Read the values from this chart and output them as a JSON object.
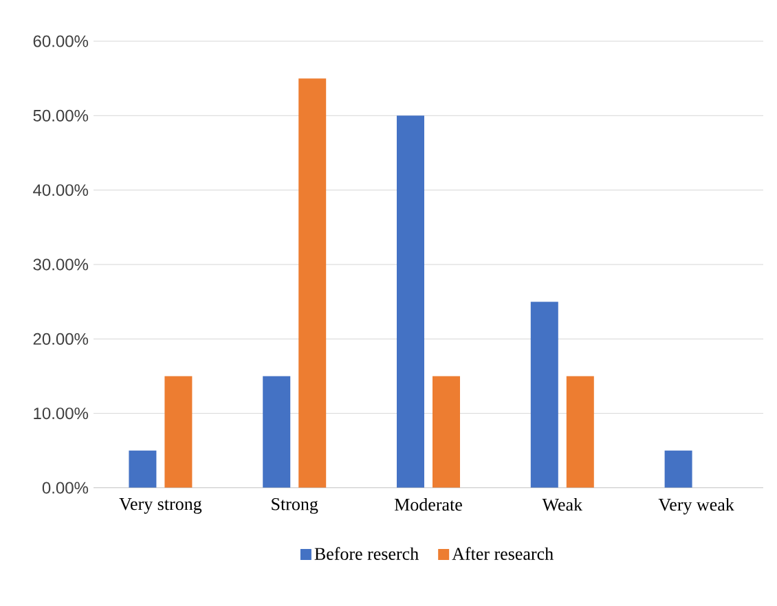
{
  "chart_data": {
    "type": "bar",
    "categories": [
      "Very strong",
      "Strong",
      "Moderate",
      "Weak",
      "Very weak"
    ],
    "series": [
      {
        "name": "Before reserch",
        "color": "#4472c4",
        "values": [
          5,
          15,
          50,
          25,
          5
        ]
      },
      {
        "name": "After research",
        "color": "#ed7d31",
        "values": [
          15,
          55,
          15,
          15,
          0
        ]
      }
    ],
    "ylim": [
      0,
      60
    ],
    "yticks": [
      {
        "value": 0,
        "label": "0.00%"
      },
      {
        "value": 10,
        "label": "10.00%"
      },
      {
        "value": 20,
        "label": "20.00%"
      },
      {
        "value": 30,
        "label": "30.00%"
      },
      {
        "value": 40,
        "label": "40.00%"
      },
      {
        "value": 50,
        "label": "50.00%"
      },
      {
        "value": 60,
        "label": "60.00%"
      }
    ],
    "grid": "y",
    "legend": "bottom"
  }
}
